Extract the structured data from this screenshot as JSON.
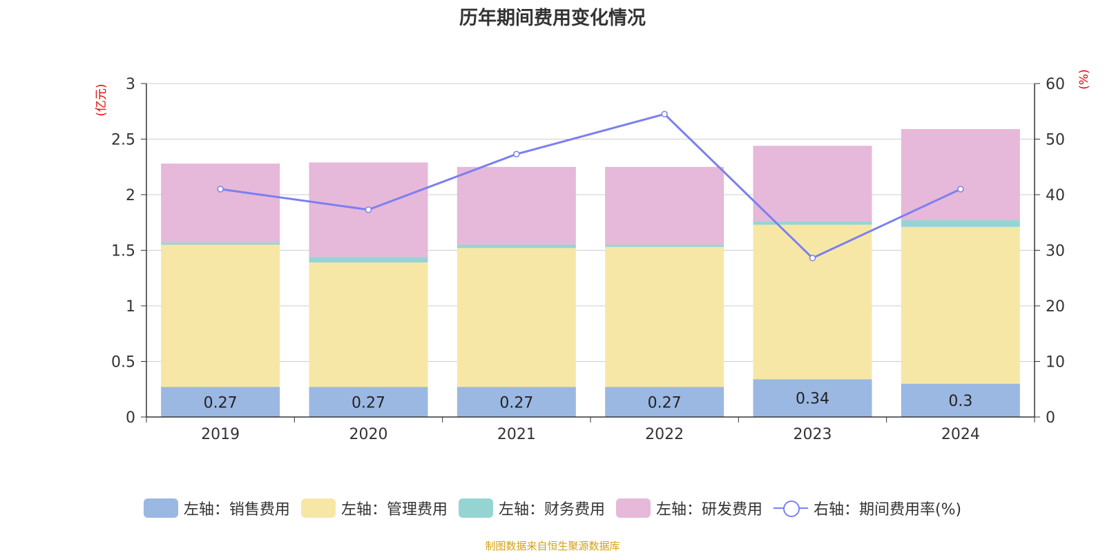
{
  "title": "历年期间费用变化情况",
  "source": "制图数据来自恒生聚源数据库",
  "colors": {
    "sales": "#9bb8e2",
    "admin": "#f7e7a6",
    "finance": "#96d4d4",
    "rd": "#e6b8d9",
    "rate": "#7b7ff0",
    "unit": "#e60000"
  },
  "legend": [
    {
      "label": "左轴：销售费用",
      "key": "sales",
      "kind": "bar"
    },
    {
      "label": "左轴：管理费用",
      "key": "admin",
      "kind": "bar"
    },
    {
      "label": "左轴：财务费用",
      "key": "finance",
      "kind": "bar"
    },
    {
      "label": "左轴：研发费用",
      "key": "rd",
      "kind": "bar"
    },
    {
      "label": "右轴：期间费用率(%)",
      "key": "rate",
      "kind": "line"
    }
  ],
  "chart_data": {
    "type": "bar",
    "stacked": true,
    "categories": [
      "2019",
      "2020",
      "2021",
      "2022",
      "2023",
      "2024"
    ],
    "left_axis": {
      "unit": "(亿元)",
      "ylim": [
        0,
        3
      ],
      "ticks": [
        0,
        0.5,
        1,
        1.5,
        2,
        2.5,
        3
      ],
      "tick_labels": [
        "0",
        "0.5",
        "1",
        "1.5",
        "2",
        "2.5",
        "3"
      ]
    },
    "right_axis": {
      "unit": "(%)",
      "ylim": [
        0,
        60
      ],
      "ticks": [
        0,
        10,
        20,
        30,
        40,
        50,
        60
      ],
      "tick_labels": [
        "0",
        "10",
        "20",
        "30",
        "40",
        "50",
        "60"
      ]
    },
    "grid": true,
    "legend_position": "bottom",
    "series": [
      {
        "name": "左轴：销售费用",
        "key": "sales",
        "axis": "left",
        "values": [
          0.27,
          0.27,
          0.27,
          0.27,
          0.34,
          0.3
        ],
        "data_labels": [
          "0.27",
          "0.27",
          "0.27",
          "0.27",
          "0.34",
          "0.3"
        ]
      },
      {
        "name": "左轴：管理费用",
        "key": "admin",
        "axis": "left",
        "values": [
          1.28,
          1.12,
          1.25,
          1.26,
          1.39,
          1.41
        ]
      },
      {
        "name": "左轴：财务费用",
        "key": "finance",
        "axis": "left",
        "values": [
          0.02,
          0.05,
          0.03,
          0.02,
          0.03,
          0.06
        ]
      },
      {
        "name": "左轴：研发费用",
        "key": "rd",
        "axis": "left",
        "values": [
          0.71,
          0.85,
          0.7,
          0.7,
          0.68,
          0.82
        ]
      },
      {
        "name": "右轴：期间费用率(%)",
        "key": "rate",
        "axis": "right",
        "type": "line",
        "values": [
          41.0,
          37.3,
          47.3,
          54.5,
          28.6,
          41.0
        ]
      }
    ]
  }
}
